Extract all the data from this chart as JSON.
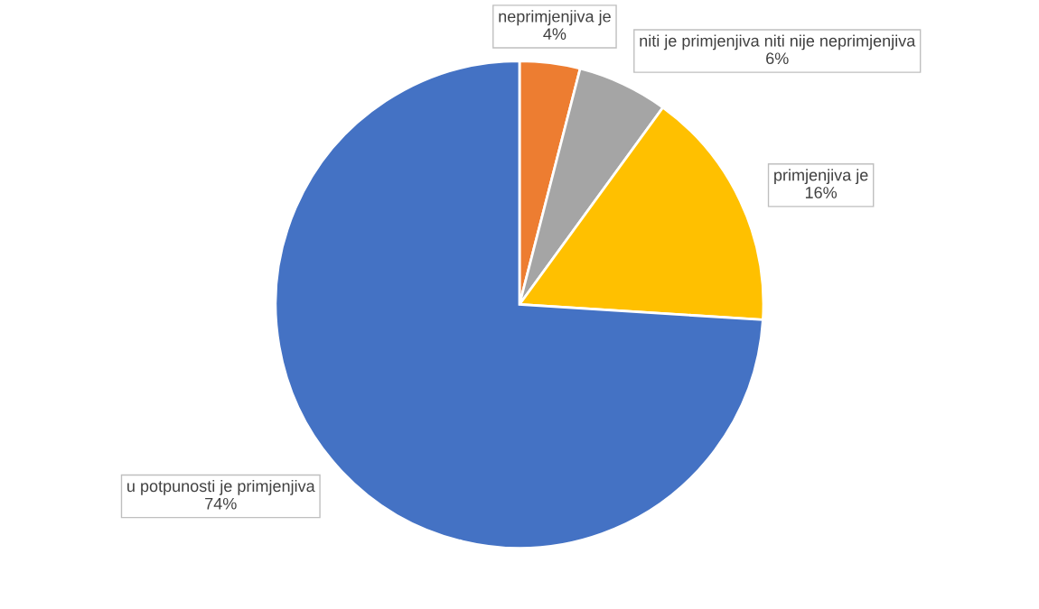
{
  "chart_data": {
    "type": "pie",
    "categories": [
      "neprimjenjiva je",
      "niti je primjenjiva niti nije neprimjenjiva",
      "primjenjiva je",
      "u potpunosti je primjenjiva"
    ],
    "values": [
      4,
      6,
      16,
      74
    ],
    "colors": [
      "#ed7d31",
      "#a5a5a5",
      "#ffc000",
      "#4472c4"
    ],
    "value_labels": [
      "4%",
      "6%",
      "16%",
      "74%"
    ],
    "legend": false
  }
}
